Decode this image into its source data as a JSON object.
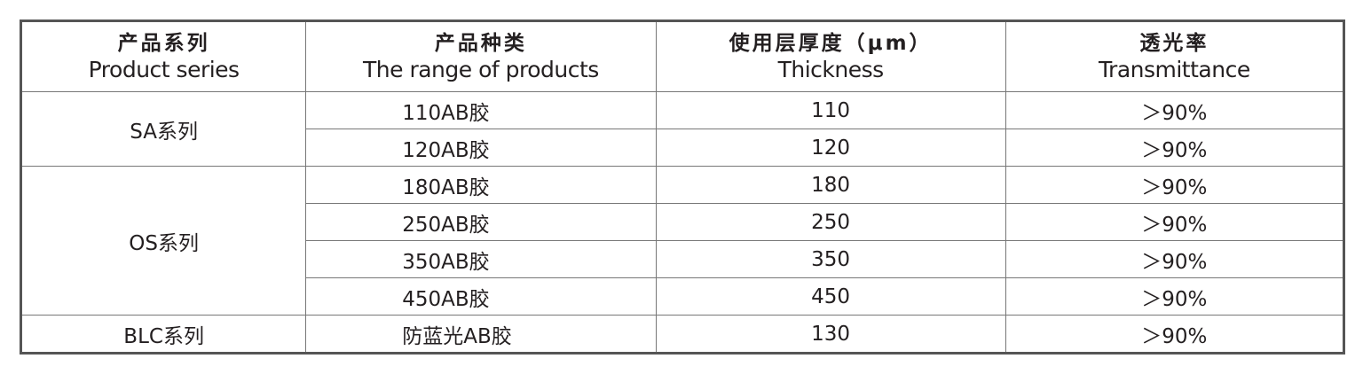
{
  "headers": [
    {
      "zh": "产品系列",
      "en": "Product series"
    },
    {
      "zh": "产品种类",
      "en": "The range of products"
    },
    {
      "zh": "使用层厚度（μm）",
      "en": "Thickness"
    },
    {
      "zh": "透光率",
      "en": "Transmittance"
    }
  ],
  "groups": [
    {
      "series": "SA系列",
      "items": [
        {
          "product": "110AB胶",
          "thickness": "110",
          "transmittance": "＞90%"
        },
        {
          "product": "120AB胶",
          "thickness": "120",
          "transmittance": "＞90%"
        }
      ]
    },
    {
      "series": "OS系列",
      "items": [
        {
          "product": "180AB胶",
          "thickness": "180",
          "transmittance": "＞90%"
        },
        {
          "product": "250AB胶",
          "thickness": "250",
          "transmittance": "＞90%"
        },
        {
          "product": "350AB胶",
          "thickness": "350",
          "transmittance": "＞90%"
        },
        {
          "product": "450AB胶",
          "thickness": "450",
          "transmittance": "＞90%"
        }
      ]
    },
    {
      "series": "BLC系列",
      "items": [
        {
          "product": "防蓝光AB胶",
          "thickness": "130",
          "transmittance": "＞90%"
        }
      ]
    }
  ]
}
